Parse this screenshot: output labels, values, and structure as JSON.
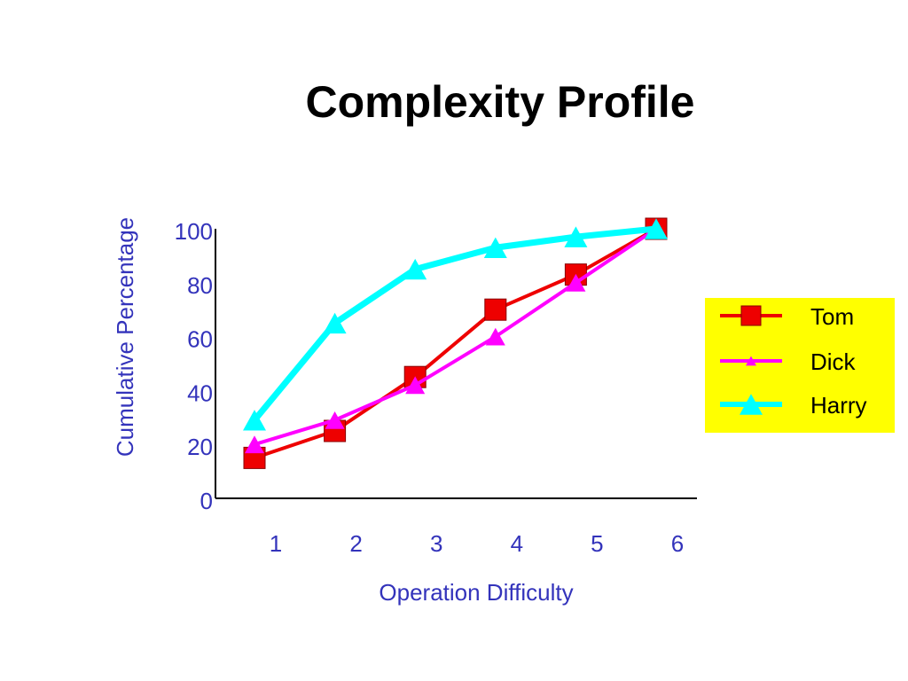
{
  "title": "Complexity Profile",
  "chart_data": {
    "type": "line",
    "title": "Complexity Profile",
    "xlabel": "Operation Difficulty",
    "ylabel": "Cumulative Percentage",
    "x": [
      1,
      2,
      3,
      4,
      5,
      6
    ],
    "x_tick_labels": [
      "1",
      "2",
      "3",
      "4",
      "5",
      "6"
    ],
    "y_ticks": [
      0,
      20,
      40,
      60,
      80,
      100
    ],
    "y_tick_labels": [
      "0",
      "20",
      "40",
      "60",
      "80",
      "100"
    ],
    "ylim": [
      0,
      100
    ],
    "grid": false,
    "legend_position": "right",
    "legend_background": "#ffff00",
    "series": [
      {
        "name": "Tom",
        "color": "#ee0000",
        "marker": "square",
        "values": [
          15,
          25,
          45,
          70,
          83,
          100
        ]
      },
      {
        "name": "Dick",
        "color": "#ff00ff",
        "marker": "triangle",
        "values": [
          20,
          29,
          42,
          60,
          80,
          100
        ]
      },
      {
        "name": "Harry",
        "color": "#00ffff",
        "marker": "triangle",
        "values": [
          29,
          65,
          85,
          93,
          97,
          100
        ]
      }
    ]
  }
}
